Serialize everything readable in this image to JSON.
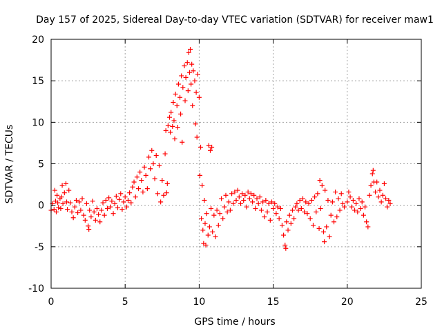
{
  "chart_data": {
    "type": "scatter",
    "title": "Day 157 of 2025, Sidereal Day-to-day VTEC variation (SDTVAR) for receiver maw1",
    "xlabel": "GPS time / hours",
    "ylabel": "SDTVAR / TECUs",
    "xlim": [
      0,
      25
    ],
    "ylim": [
      -10,
      20
    ],
    "xticks": [
      0,
      5,
      10,
      15,
      20,
      25
    ],
    "yticks": [
      -10,
      -5,
      0,
      5,
      10,
      15,
      20
    ],
    "grid": true,
    "marker": "plus",
    "series": [
      {
        "name": "maw1",
        "color": "#ff0000",
        "points": [
          [
            0.0,
            -0.6
          ],
          [
            0.1,
            0.2
          ],
          [
            0.2,
            -0.5
          ],
          [
            0.25,
            1.8
          ],
          [
            0.3,
            0.5
          ],
          [
            0.35,
            -0.8
          ],
          [
            0.4,
            1.2
          ],
          [
            0.45,
            0.3
          ],
          [
            0.5,
            -0.3
          ],
          [
            0.6,
            0.8
          ],
          [
            0.65,
            -0.4
          ],
          [
            0.7,
            1.0
          ],
          [
            0.75,
            2.4
          ],
          [
            0.8,
            0.2
          ],
          [
            0.9,
            1.5
          ],
          [
            1.0,
            2.6
          ],
          [
            1.05,
            0.4
          ],
          [
            1.1,
            -0.5
          ],
          [
            1.2,
            1.8
          ],
          [
            1.3,
            0.3
          ],
          [
            1.4,
            -0.8
          ],
          [
            1.5,
            -1.5
          ],
          [
            1.6,
            -0.2
          ],
          [
            1.7,
            0.6
          ],
          [
            1.8,
            -0.9
          ],
          [
            1.9,
            0.4
          ],
          [
            2.0,
            -0.6
          ],
          [
            2.1,
            0.8
          ],
          [
            2.2,
            -1.2
          ],
          [
            2.3,
            -1.8
          ],
          [
            2.4,
            0.2
          ],
          [
            2.5,
            -2.5
          ],
          [
            2.55,
            -2.9
          ],
          [
            2.6,
            -0.6
          ],
          [
            2.7,
            -1.4
          ],
          [
            2.8,
            0.5
          ],
          [
            2.9,
            -0.8
          ],
          [
            3.0,
            -1.8
          ],
          [
            3.1,
            -0.4
          ],
          [
            3.2,
            -1.1
          ],
          [
            3.3,
            -2.0
          ],
          [
            3.4,
            -0.6
          ],
          [
            3.5,
            0.3
          ],
          [
            3.6,
            -1.2
          ],
          [
            3.7,
            0.6
          ],
          [
            3.8,
            -0.4
          ],
          [
            3.9,
            0.9
          ],
          [
            4.0,
            -0.2
          ],
          [
            4.1,
            0.5
          ],
          [
            4.2,
            -1.0
          ],
          [
            4.3,
            0.2
          ],
          [
            4.4,
            1.1
          ],
          [
            4.5,
            -0.3
          ],
          [
            4.6,
            0.7
          ],
          [
            4.7,
            1.4
          ],
          [
            4.8,
            -0.5
          ],
          [
            4.9,
            0.4
          ],
          [
            5.0,
            1.0
          ],
          [
            5.1,
            -0.2
          ],
          [
            5.2,
            0.6
          ],
          [
            5.3,
            1.5
          ],
          [
            5.4,
            0.3
          ],
          [
            5.5,
            2.2
          ],
          [
            5.6,
            2.8
          ],
          [
            5.7,
            1.0
          ],
          [
            5.8,
            3.4
          ],
          [
            5.9,
            2.0
          ],
          [
            6.0,
            4.0
          ],
          [
            6.1,
            3.0
          ],
          [
            6.2,
            1.6
          ],
          [
            6.3,
            4.6
          ],
          [
            6.4,
            3.6
          ],
          [
            6.5,
            2.0
          ],
          [
            6.6,
            5.8
          ],
          [
            6.7,
            4.4
          ],
          [
            6.8,
            6.6
          ],
          [
            6.9,
            5.0
          ],
          [
            7.0,
            3.2
          ],
          [
            7.1,
            6.0
          ],
          [
            7.2,
            1.4
          ],
          [
            7.3,
            4.8
          ],
          [
            7.4,
            0.4
          ],
          [
            7.5,
            3.0
          ],
          [
            7.6,
            1.2
          ],
          [
            7.7,
            6.2
          ],
          [
            7.75,
            9.0
          ],
          [
            7.8,
            1.5
          ],
          [
            7.85,
            2.6
          ],
          [
            7.9,
            9.6
          ],
          [
            8.0,
            10.6
          ],
          [
            8.05,
            8.8
          ],
          [
            8.1,
            11.2
          ],
          [
            8.2,
            9.5
          ],
          [
            8.25,
            12.4
          ],
          [
            8.3,
            10.2
          ],
          [
            8.35,
            8.0
          ],
          [
            8.4,
            13.4
          ],
          [
            8.5,
            12.0
          ],
          [
            8.55,
            9.4
          ],
          [
            8.6,
            14.6
          ],
          [
            8.7,
            13.0
          ],
          [
            8.75,
            11.0
          ],
          [
            8.8,
            15.6
          ],
          [
            8.85,
            7.6
          ],
          [
            8.9,
            14.2
          ],
          [
            9.0,
            16.8
          ],
          [
            9.05,
            12.6
          ],
          [
            9.1,
            15.4
          ],
          [
            9.2,
            17.2
          ],
          [
            9.25,
            13.8
          ],
          [
            9.3,
            18.4
          ],
          [
            9.35,
            16.0
          ],
          [
            9.4,
            18.8
          ],
          [
            9.45,
            14.6
          ],
          [
            9.5,
            17.0
          ],
          [
            9.55,
            12.0
          ],
          [
            9.6,
            16.2
          ],
          [
            9.7,
            15.0
          ],
          [
            9.75,
            9.8
          ],
          [
            9.8,
            13.6
          ],
          [
            9.85,
            8.2
          ],
          [
            9.9,
            15.8
          ],
          [
            10.0,
            13.0
          ],
          [
            10.05,
            3.6
          ],
          [
            10.1,
            7.0
          ],
          [
            10.15,
            -1.6
          ],
          [
            10.2,
            2.4
          ],
          [
            10.25,
            -3.0
          ],
          [
            10.3,
            -4.6
          ],
          [
            10.35,
            0.6
          ],
          [
            10.4,
            -2.2
          ],
          [
            10.45,
            -4.8
          ],
          [
            10.5,
            -1.0
          ],
          [
            10.6,
            -3.6
          ],
          [
            10.65,
            7.2
          ],
          [
            10.7,
            -2.6
          ],
          [
            10.75,
            6.6
          ],
          [
            10.8,
            -0.4
          ],
          [
            10.85,
            7.0
          ],
          [
            10.9,
            -3.2
          ],
          [
            11.0,
            -1.2
          ],
          [
            11.1,
            -3.8
          ],
          [
            11.2,
            -0.6
          ],
          [
            11.3,
            -2.4
          ],
          [
            11.4,
            -1.0
          ],
          [
            11.5,
            0.8
          ],
          [
            11.6,
            -1.6
          ],
          [
            11.7,
            -0.2
          ],
          [
            11.8,
            1.2
          ],
          [
            11.9,
            -0.8
          ],
          [
            12.0,
            0.4
          ],
          [
            12.1,
            -0.6
          ],
          [
            12.2,
            1.4
          ],
          [
            12.3,
            0.2
          ],
          [
            12.4,
            1.6
          ],
          [
            12.5,
            0.6
          ],
          [
            12.6,
            1.8
          ],
          [
            12.7,
            1.0
          ],
          [
            12.8,
            0.2
          ],
          [
            12.9,
            1.4
          ],
          [
            13.0,
            0.6
          ],
          [
            13.1,
            1.2
          ],
          [
            13.2,
            -0.2
          ],
          [
            13.3,
            1.6
          ],
          [
            13.4,
            0.8
          ],
          [
            13.5,
            1.4
          ],
          [
            13.6,
            0.4
          ],
          [
            13.7,
            1.2
          ],
          [
            13.8,
            -0.4
          ],
          [
            13.9,
            0.8
          ],
          [
            14.0,
            0.2
          ],
          [
            14.1,
            1.0
          ],
          [
            14.2,
            -0.6
          ],
          [
            14.3,
            0.4
          ],
          [
            14.4,
            -1.4
          ],
          [
            14.5,
            0.6
          ],
          [
            14.6,
            -0.8
          ],
          [
            14.7,
            0.2
          ],
          [
            14.8,
            -1.8
          ],
          [
            14.9,
            0.4
          ],
          [
            15.0,
            -0.4
          ],
          [
            15.1,
            0.2
          ],
          [
            15.2,
            -1.0
          ],
          [
            15.3,
            -0.2
          ],
          [
            15.4,
            -1.6
          ],
          [
            15.5,
            -0.4
          ],
          [
            15.6,
            -2.4
          ],
          [
            15.7,
            -3.6
          ],
          [
            15.8,
            -4.8
          ],
          [
            15.85,
            -5.2
          ],
          [
            15.9,
            -2.0
          ],
          [
            16.0,
            -3.0
          ],
          [
            16.1,
            -1.2
          ],
          [
            16.2,
            -2.2
          ],
          [
            16.3,
            -0.6
          ],
          [
            16.4,
            -1.6
          ],
          [
            16.5,
            -0.2
          ],
          [
            16.6,
            0.2
          ],
          [
            16.7,
            -0.6
          ],
          [
            16.8,
            0.6
          ],
          [
            16.9,
            -0.4
          ],
          [
            17.0,
            0.8
          ],
          [
            17.1,
            -0.8
          ],
          [
            17.2,
            0.4
          ],
          [
            17.3,
            -1.0
          ],
          [
            17.4,
            0.2
          ],
          [
            17.5,
            -1.6
          ],
          [
            17.6,
            0.6
          ],
          [
            17.7,
            -2.4
          ],
          [
            17.8,
            1.0
          ],
          [
            17.9,
            -0.8
          ],
          [
            18.0,
            1.4
          ],
          [
            18.1,
            -2.8
          ],
          [
            18.15,
            3.0
          ],
          [
            18.2,
            -0.4
          ],
          [
            18.3,
            2.4
          ],
          [
            18.4,
            -3.2
          ],
          [
            18.45,
            -4.4
          ],
          [
            18.5,
            1.8
          ],
          [
            18.6,
            -2.6
          ],
          [
            18.7,
            0.6
          ],
          [
            18.8,
            -3.8
          ],
          [
            18.9,
            -1.2
          ],
          [
            19.0,
            0.4
          ],
          [
            19.1,
            -2.0
          ],
          [
            19.2,
            1.6
          ],
          [
            19.3,
            -1.4
          ],
          [
            19.4,
            0.8
          ],
          [
            19.5,
            -0.6
          ],
          [
            19.6,
            1.4
          ],
          [
            19.7,
            0.2
          ],
          [
            19.8,
            -0.2
          ],
          [
            20.0,
            0.4
          ],
          [
            20.1,
            1.6
          ],
          [
            20.2,
            1.0
          ],
          [
            20.3,
            -0.2
          ],
          [
            20.4,
            0.6
          ],
          [
            20.5,
            -0.6
          ],
          [
            20.6,
            0.2
          ],
          [
            20.7,
            -0.8
          ],
          [
            20.8,
            0.8
          ],
          [
            20.9,
            -0.4
          ],
          [
            21.0,
            0.4
          ],
          [
            21.1,
            -1.2
          ],
          [
            21.2,
            -0.2
          ],
          [
            21.3,
            -2.0
          ],
          [
            21.4,
            -2.6
          ],
          [
            21.5,
            1.2
          ],
          [
            21.6,
            2.4
          ],
          [
            21.7,
            3.8
          ],
          [
            21.75,
            4.2
          ],
          [
            21.8,
            2.8
          ],
          [
            21.9,
            1.6
          ],
          [
            22.0,
            2.8
          ],
          [
            22.1,
            1.0
          ],
          [
            22.2,
            1.8
          ],
          [
            22.3,
            0.4
          ],
          [
            22.4,
            1.2
          ],
          [
            22.5,
            2.6
          ],
          [
            22.6,
            0.8
          ],
          [
            22.7,
            -0.2
          ],
          [
            22.8,
            0.6
          ],
          [
            22.9,
            0.2
          ]
        ]
      }
    ]
  }
}
